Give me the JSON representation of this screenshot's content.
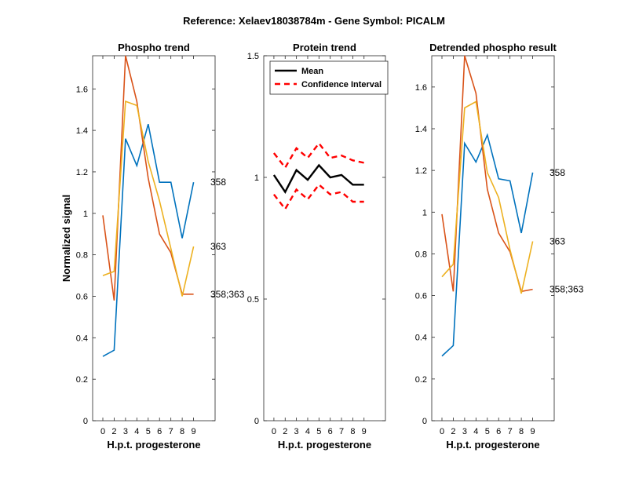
{
  "figure": {
    "suptitle": "Reference:  Xelaev18038784m - Gene Symbol:  PICALM"
  },
  "chart_data": [
    {
      "type": "line",
      "title": "Phospho trend",
      "xlabel": "H.p.t. progesterone",
      "ylabel": "Normalized signal",
      "xlim": [
        -0.9,
        9.9
      ],
      "ylim": [
        0,
        1.76
      ],
      "x_ticks": [
        "0",
        "2",
        "3",
        "4",
        "5",
        "6",
        "7",
        "8",
        "9"
      ],
      "y_ticks": [
        "0",
        "0.2",
        "0.4",
        "0.6",
        "0.8",
        "1",
        "1.2",
        "1.4",
        "1.6"
      ],
      "grid": false,
      "series": [
        {
          "name": "358",
          "color": "#0072BD",
          "values": [
            0.31,
            0.34,
            1.36,
            1.23,
            1.43,
            1.15,
            1.15,
            0.88,
            1.15
          ]
        },
        {
          "name": "358;363",
          "color": "#D95319",
          "values": [
            0.99,
            0.58,
            1.78,
            1.54,
            1.17,
            0.9,
            0.81,
            0.61,
            0.61
          ]
        },
        {
          "name": "363",
          "color": "#EDB120",
          "values": [
            0.7,
            0.72,
            1.54,
            1.52,
            1.25,
            1.06,
            0.83,
            0.6,
            0.84
          ]
        }
      ]
    },
    {
      "type": "line",
      "title": "Protein trend",
      "xlabel": "H.p.t. progesterone",
      "xlim": [
        -0.9,
        9.9
      ],
      "ylim": [
        0,
        1.5
      ],
      "x_ticks": [
        "0",
        "2",
        "3",
        "4",
        "5",
        "6",
        "7",
        "8",
        "9"
      ],
      "y_ticks": [
        "0",
        "0.5",
        "1",
        "1.5"
      ],
      "grid": false,
      "legend": {
        "placement": "top-left"
      },
      "series": [
        {
          "name": "Mean",
          "color": "#000000",
          "style": "solid",
          "values": [
            1.01,
            0.94,
            1.03,
            0.99,
            1.05,
            1.0,
            1.01,
            0.97,
            0.97
          ]
        },
        {
          "name": "Confidence Interval",
          "color": "#FF0000",
          "style": "dashed",
          "values": [
            1.1,
            1.04,
            1.12,
            1.08,
            1.14,
            1.08,
            1.09,
            1.07,
            1.06
          ]
        },
        {
          "name": "",
          "color": "#FF0000",
          "style": "dashed",
          "values": [
            0.93,
            0.87,
            0.95,
            0.91,
            0.97,
            0.93,
            0.94,
            0.9,
            0.9
          ]
        }
      ]
    },
    {
      "type": "line",
      "title": "Detrended phospho result",
      "xlabel": "H.p.t. progesterone",
      "xlim": [
        -0.9,
        9.9
      ],
      "ylim": [
        0,
        1.75
      ],
      "x_ticks": [
        "0",
        "2",
        "3",
        "4",
        "5",
        "6",
        "7",
        "8",
        "9"
      ],
      "y_ticks": [
        "0",
        "0.2",
        "0.4",
        "0.6",
        "0.8",
        "1",
        "1.2",
        "1.4",
        "1.6"
      ],
      "grid": false,
      "series": [
        {
          "name": "358",
          "color": "#0072BD",
          "values": [
            0.31,
            0.36,
            1.33,
            1.24,
            1.37,
            1.16,
            1.15,
            0.9,
            1.19
          ]
        },
        {
          "name": "358;363",
          "color": "#D95319",
          "values": [
            0.99,
            0.62,
            1.76,
            1.57,
            1.11,
            0.9,
            0.81,
            0.62,
            0.63
          ]
        },
        {
          "name": "363",
          "color": "#EDB120",
          "values": [
            0.69,
            0.75,
            1.5,
            1.53,
            1.19,
            1.07,
            0.82,
            0.61,
            0.86
          ]
        }
      ]
    }
  ]
}
